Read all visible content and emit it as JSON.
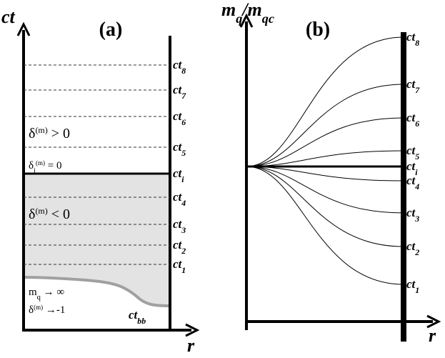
{
  "panel_a": {
    "label": "(a)",
    "y_axis": [
      {
        "text": "ct"
      }
    ],
    "x_axis": [
      {
        "text": "r"
      }
    ],
    "levels": [
      [
        {
          "text": "ct"
        },
        {
          "text": "8",
          "pos": "sub"
        }
      ],
      [
        {
          "text": "ct"
        },
        {
          "text": "7",
          "pos": "sub"
        }
      ],
      [
        {
          "text": "ct"
        },
        {
          "text": "6",
          "pos": "sub"
        }
      ],
      [
        {
          "text": "ct"
        },
        {
          "text": "5",
          "pos": "sub"
        }
      ],
      [
        {
          "text": "ct"
        },
        {
          "text": "i",
          "pos": "sub"
        }
      ],
      [
        {
          "text": "ct"
        },
        {
          "text": "4",
          "pos": "sub"
        }
      ],
      [
        {
          "text": "ct"
        },
        {
          "text": "3",
          "pos": "sub"
        }
      ],
      [
        {
          "text": "ct"
        },
        {
          "text": "2",
          "pos": "sub"
        }
      ],
      [
        {
          "text": "ct"
        },
        {
          "text": "1",
          "pos": "sub"
        }
      ]
    ],
    "region_above": [
      {
        "text": "δ"
      },
      {
        "text": "(m)",
        "pos": "sup"
      },
      {
        "text": " > 0"
      }
    ],
    "boundary": [
      {
        "text": "δ"
      },
      {
        "text": "i",
        "pos": "sub"
      },
      {
        "text": "(m)",
        "pos": "sup"
      },
      {
        "text": " = 0"
      }
    ],
    "region_below": [
      {
        "text": "δ"
      },
      {
        "text": "(m)",
        "pos": "sup"
      },
      {
        "text": " < 0"
      }
    ],
    "limit_mass": [
      {
        "text": "m"
      },
      {
        "text": "q",
        "pos": "sub"
      },
      {
        "text": " → ∞"
      }
    ],
    "limit_delta": [
      {
        "text": "δ"
      },
      {
        "text": "(m)",
        "pos": "sup"
      },
      {
        "text": " →-1"
      }
    ],
    "bang": [
      {
        "text": "ct"
      },
      {
        "text": "bb",
        "pos": "sub"
      }
    ]
  },
  "panel_b": {
    "label": "(b)",
    "y_axis": [
      {
        "text": "m"
      },
      {
        "text": "q",
        "pos": "sub"
      },
      {
        "text": "/m"
      },
      {
        "text": "qc",
        "pos": "sub"
      }
    ],
    "x_axis": [
      {
        "text": "r"
      }
    ],
    "levels": [
      [
        {
          "text": "ct"
        },
        {
          "text": "8",
          "pos": "sub"
        }
      ],
      [
        {
          "text": "ct"
        },
        {
          "text": "7",
          "pos": "sub"
        }
      ],
      [
        {
          "text": "ct"
        },
        {
          "text": "6",
          "pos": "sub"
        }
      ],
      [
        {
          "text": "ct"
        },
        {
          "text": "5",
          "pos": "sub"
        }
      ],
      [
        {
          "text": "ct"
        },
        {
          "text": "i",
          "pos": "sub"
        }
      ],
      [
        {
          "text": "ct"
        },
        {
          "text": "4",
          "pos": "sub"
        }
      ],
      [
        {
          "text": "ct"
        },
        {
          "text": "3",
          "pos": "sub"
        }
      ],
      [
        {
          "text": "ct"
        },
        {
          "text": "2",
          "pos": "sub"
        }
      ],
      [
        {
          "text": "ct"
        },
        {
          "text": "1",
          "pos": "sub"
        }
      ]
    ]
  }
}
